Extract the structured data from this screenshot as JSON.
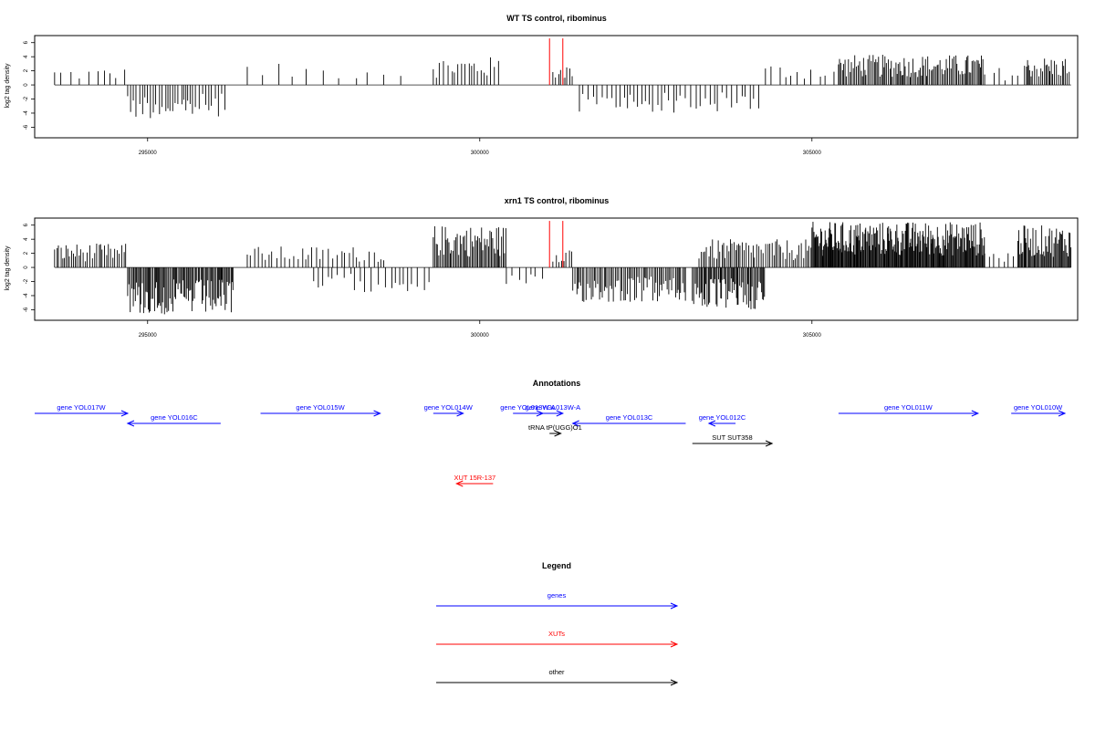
{
  "chart_data": [
    {
      "type": "bar",
      "title": "WT TS control, ribominus",
      "ylabel": "log2 tag density",
      "xlabel": "",
      "xlim": [
        293300,
        309000
      ],
      "ylim": [
        -7.5,
        7
      ],
      "yticks": [
        -6,
        -4,
        -2,
        0,
        2,
        4,
        6
      ],
      "xticks": [
        295000,
        300000,
        305000
      ],
      "baseline": 0,
      "regions": [
        {
          "from": 293600,
          "to": 294700,
          "sign": 1,
          "max": 2.4,
          "step": 110
        },
        {
          "from": 294700,
          "to": 296200,
          "sign": -1,
          "max": 4.8,
          "step": 45
        },
        {
          "from": 296500,
          "to": 299000,
          "sign": 1,
          "max": 3.0,
          "step": 200
        },
        {
          "from": 299300,
          "to": 300300,
          "sign": 1,
          "max": 4.0,
          "step": 50
        },
        {
          "from": 301100,
          "to": 301400,
          "sign": 1,
          "max": 3.0,
          "step": 40
        },
        {
          "from": 301500,
          "to": 304200,
          "sign": -1,
          "max": 4.0,
          "step": 60
        },
        {
          "from": 304300,
          "to": 305400,
          "sign": 1,
          "max": 3.0,
          "step": 110
        },
        {
          "from": 305400,
          "to": 307600,
          "sign": 1,
          "max": 4.3,
          "step": 22
        },
        {
          "from": 307600,
          "to": 308200,
          "sign": 1,
          "max": 2.5,
          "step": 120
        },
        {
          "from": 308200,
          "to": 308900,
          "sign": 1,
          "max": 4.0,
          "step": 25
        }
      ],
      "highlights": [
        {
          "x": 301050,
          "y": 6.6,
          "color": "#ff0000"
        },
        {
          "x": 301250,
          "y": 6.6,
          "color": "#ff0000"
        }
      ]
    },
    {
      "type": "bar",
      "title": "xrn1 TS control, ribominus",
      "ylabel": "log2 tag density",
      "xlabel": "",
      "xlim": [
        293300,
        309000
      ],
      "ylim": [
        -7.5,
        7
      ],
      "yticks": [
        -6,
        -4,
        -2,
        0,
        2,
        4,
        6
      ],
      "xticks": [
        295000,
        300000,
        305000
      ],
      "baseline": 0,
      "regions": [
        {
          "from": 293600,
          "to": 294700,
          "sign": 1,
          "max": 3.4,
          "step": 30
        },
        {
          "from": 294700,
          "to": 296300,
          "sign": -1,
          "max": 6.8,
          "step": 18
        },
        {
          "from": 296500,
          "to": 298600,
          "sign": 1,
          "max": 3.0,
          "step": 60
        },
        {
          "from": 297500,
          "to": 299300,
          "sign": -1,
          "max": 3.5,
          "step": 80
        },
        {
          "from": 299300,
          "to": 300400,
          "sign": 1,
          "max": 6.0,
          "step": 20
        },
        {
          "from": 300400,
          "to": 301000,
          "sign": -1,
          "max": 3.0,
          "step": 90
        },
        {
          "from": 301100,
          "to": 301400,
          "sign": 1,
          "max": 3.0,
          "step": 40
        },
        {
          "from": 301400,
          "to": 303100,
          "sign": -1,
          "max": 5.0,
          "step": 25
        },
        {
          "from": 303200,
          "to": 304300,
          "sign": -1,
          "max": 6.0,
          "step": 18
        },
        {
          "from": 303300,
          "to": 305000,
          "sign": 1,
          "max": 4.0,
          "step": 30
        },
        {
          "from": 305000,
          "to": 307600,
          "sign": 1,
          "max": 6.5,
          "step": 12
        },
        {
          "from": 307600,
          "to": 308100,
          "sign": 1,
          "max": 2.5,
          "step": 80
        },
        {
          "from": 308100,
          "to": 308900,
          "sign": 1,
          "max": 6.0,
          "step": 15
        }
      ],
      "highlights": [
        {
          "x": 301050,
          "y": 6.6,
          "color": "#ff0000"
        },
        {
          "x": 301250,
          "y": 6.6,
          "color": "#ff0000"
        }
      ]
    }
  ],
  "annotations": {
    "title": "Annotations",
    "items": [
      {
        "label": "gene YOL017W",
        "from": 293300,
        "to": 294700,
        "row": 0,
        "dir": "right",
        "color": "#0000ff"
      },
      {
        "label": "gene YOL016C",
        "from": 294700,
        "to": 296100,
        "row": 1,
        "dir": "left",
        "color": "#0000ff"
      },
      {
        "label": "gene YOL015W",
        "from": 296700,
        "to": 298500,
        "row": 0,
        "dir": "right",
        "color": "#0000ff"
      },
      {
        "label": "gene YOL014W",
        "from": 299300,
        "to": 299750,
        "row": 0,
        "dir": "right",
        "color": "#0000ff"
      },
      {
        "label": "gene YOL013W-A",
        "from": 300500,
        "to": 300950,
        "row": 0,
        "dir": "right",
        "color": "#0000ff"
      },
      {
        "label": "gene YOL013W-A",
        "from": 300950,
        "to": 301250,
        "row": 0,
        "dir": "right",
        "color": "#0000ff"
      },
      {
        "label": "gene YOL013C",
        "from": 301400,
        "to": 303100,
        "row": 1,
        "dir": "left",
        "color": "#0000ff"
      },
      {
        "label": "gene YOL012C",
        "from": 303450,
        "to": 303850,
        "row": 1,
        "dir": "left",
        "color": "#0000ff"
      },
      {
        "label": "gene YOL011W",
        "from": 305400,
        "to": 307500,
        "row": 0,
        "dir": "right",
        "color": "#0000ff"
      },
      {
        "label": "gene YOL010W",
        "from": 308000,
        "to": 309100,
        "row": 0,
        "dir": "right",
        "color": "#0000ff"
      },
      {
        "label": "tRNA tP(UGG)O1",
        "from": 301050,
        "to": 301220,
        "row": 2,
        "dir": "right",
        "color": "#000000"
      },
      {
        "label": "SUT SUT358",
        "from": 303200,
        "to": 304400,
        "row": 3,
        "dir": "right",
        "color": "#000000"
      },
      {
        "label": "XUT 15R-137",
        "from": 299650,
        "to": 300200,
        "row": 7,
        "dir": "left",
        "color": "#ff0000"
      }
    ]
  },
  "legend": {
    "title": "Legend",
    "items": [
      {
        "label": "genes",
        "color": "#0000ff"
      },
      {
        "label": "XUTs",
        "color": "#ff0000"
      },
      {
        "label": "other",
        "color": "#000000"
      }
    ]
  }
}
